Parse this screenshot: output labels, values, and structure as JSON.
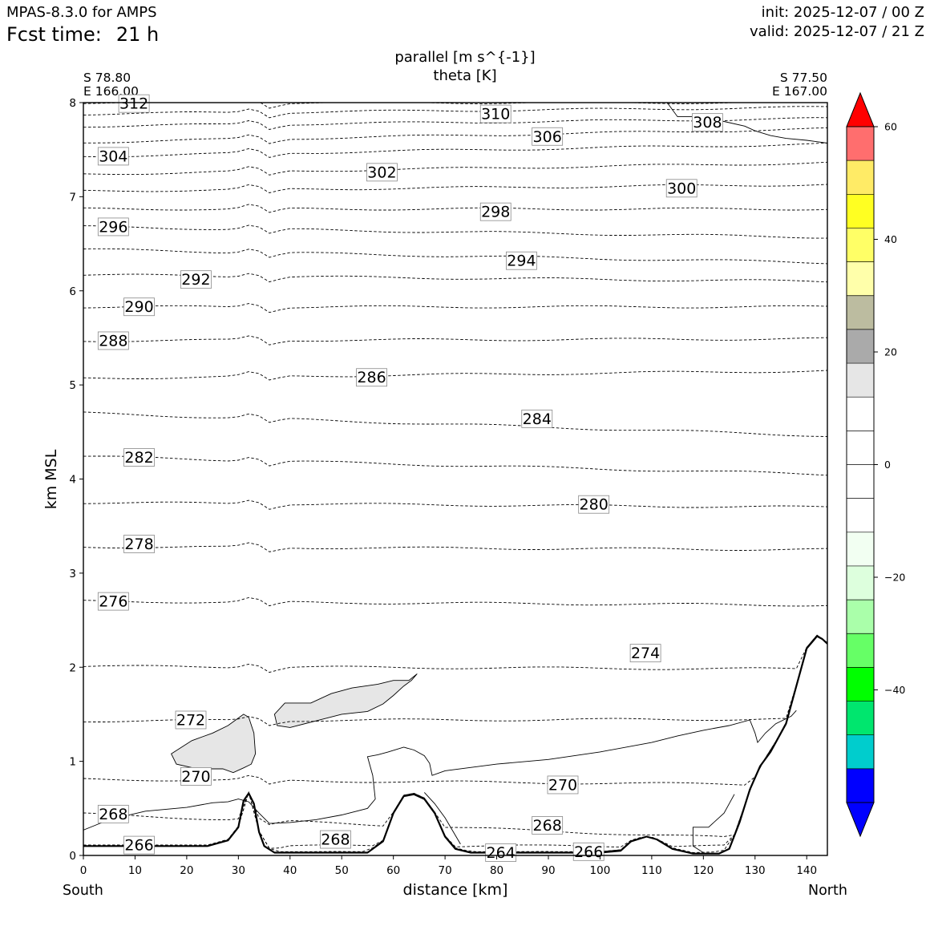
{
  "header": {
    "model": "MPAS-8.3.0 for AMPS",
    "fcst_label": "Fcst time:",
    "fcst_value": "21 h",
    "init": "init: 2025-12-07 / 00 Z",
    "valid": "valid: 2025-12-07 / 21 Z"
  },
  "chart_data": {
    "type": "contour",
    "title": "parallel [m s^{-1}]",
    "subtitle": "theta [K]",
    "xlabel": "distance [km]",
    "ylabel": "km MSL",
    "xlim": [
      0,
      144
    ],
    "ylim": [
      0,
      8
    ],
    "xticks": [
      0,
      10,
      20,
      30,
      40,
      50,
      60,
      70,
      80,
      90,
      100,
      110,
      120,
      130,
      140
    ],
    "yticks": [
      0,
      1,
      2,
      3,
      4,
      5,
      6,
      7,
      8
    ],
    "endpoints": {
      "left": [
        "S 78.80",
        "E 166.00"
      ],
      "right": [
        "S 77.50",
        "E 167.00"
      ]
    },
    "direction_labels": {
      "left": "South",
      "right": "North"
    },
    "theta_contours": [
      {
        "label": "312",
        "z_left": 8.0,
        "z_right": 8.0,
        "label_at": [
          7,
          7.99
        ]
      },
      {
        "label": "310",
        "z_left": 7.88,
        "z_right": 7.95,
        "label_at": [
          77,
          7.88
        ]
      },
      {
        "label": "308",
        "z_left": 7.75,
        "z_right": 7.83,
        "label_at": [
          118,
          7.79
        ]
      },
      {
        "label": "306",
        "z_left": 7.58,
        "z_right": 7.72,
        "label_at": [
          87,
          7.64
        ]
      },
      {
        "label": "304",
        "z_left": 7.43,
        "z_right": 7.56,
        "label_at": [
          3,
          7.43
        ]
      },
      {
        "label": "302",
        "z_left": 7.24,
        "z_right": 7.36,
        "label_at": [
          55,
          7.26
        ]
      },
      {
        "label": "300",
        "z_left": 7.06,
        "z_right": 7.13,
        "label_at": [
          113,
          7.09
        ]
      },
      {
        "label": "298",
        "z_left": 6.87,
        "z_right": 6.87,
        "label_at": [
          77,
          6.84
        ]
      },
      {
        "label": "296",
        "z_left": 6.68,
        "z_right": 6.57,
        "label_at": [
          3,
          6.68
        ]
      },
      {
        "label": "294",
        "z_left": 6.44,
        "z_right": 6.3,
        "label_at": [
          82,
          6.32
        ]
      },
      {
        "label": "292",
        "z_left": 6.17,
        "z_right": 6.1,
        "label_at": [
          19,
          6.12
        ]
      },
      {
        "label": "290",
        "z_left": 5.83,
        "z_right": 5.83,
        "label_at": [
          8,
          5.83
        ]
      },
      {
        "label": "288",
        "z_left": 5.47,
        "z_right": 5.49,
        "label_at": [
          3,
          5.47
        ]
      },
      {
        "label": "286",
        "z_left": 5.07,
        "z_right": 5.15,
        "label_at": [
          53,
          5.08
        ]
      },
      {
        "label": "284",
        "z_left": 4.7,
        "z_right": 4.46,
        "label_at": [
          85,
          4.64
        ]
      },
      {
        "label": "282",
        "z_left": 4.24,
        "z_right": 4.05,
        "label_at": [
          8,
          4.23
        ]
      },
      {
        "label": "280",
        "z_left": 3.75,
        "z_right": 3.7,
        "label_at": [
          96,
          3.73
        ]
      },
      {
        "label": "278",
        "z_left": 3.28,
        "z_right": 3.25,
        "label_at": [
          8,
          3.31
        ]
      },
      {
        "label": "276",
        "z_left": 2.7,
        "z_right": 2.66,
        "label_at": [
          3,
          2.7
        ]
      },
      {
        "label": "274",
        "z_left": 2.01,
        "z_right": 1.98,
        "label_at": [
          106,
          2.15
        ]
      },
      {
        "label": "272",
        "z_left": 1.43,
        "z_right": 1.45,
        "label_at": [
          18,
          1.44
        ]
      },
      {
        "label": "270",
        "z_left": 0.81,
        "z_right": 0.75,
        "label_at": [
          19,
          0.84
        ]
      },
      {
        "label": "268",
        "z_left": 0.44,
        "z_right": 0.15,
        "label_at": [
          3,
          0.44
        ]
      },
      {
        "label": "268",
        "z_left": 0.44,
        "z_right": 0.15,
        "label_at": [
          46,
          0.17
        ]
      },
      {
        "label": "268",
        "z_left": 0.44,
        "z_right": 0.15,
        "label_at": [
          87,
          0.32
        ]
      },
      {
        "label": "270",
        "z_left": 0.81,
        "z_right": 0.75,
        "label_at": [
          90,
          0.75
        ]
      },
      {
        "label": "266",
        "z_left": 0.1,
        "z_right": 0.1,
        "label_at": [
          8,
          0.11
        ]
      },
      {
        "label": "266",
        "z_left": 0.1,
        "z_right": 0.1,
        "label_at": [
          95,
          0.04
        ]
      },
      {
        "label": "264",
        "z_left": 0.03,
        "z_right": 0.03,
        "label_at": [
          78,
          0.03
        ]
      }
    ],
    "colorbar": {
      "ticks": [
        60,
        40,
        20,
        0,
        -20,
        -40
      ],
      "tick_labels": [
        "60",
        "40",
        "20",
        "0",
        "−20",
        "−40"
      ],
      "min": -60,
      "max": 60,
      "colors": [
        {
          "from": -60,
          "to": -54,
          "color": "#0000ff"
        },
        {
          "from": -54,
          "to": -48,
          "color": "#00cdcd"
        },
        {
          "from": -48,
          "to": -42,
          "color": "#00e66e"
        },
        {
          "from": -42,
          "to": -36,
          "color": "#00ff00"
        },
        {
          "from": -36,
          "to": -30,
          "color": "#66ff66"
        },
        {
          "from": -30,
          "to": -24,
          "color": "#aaffaa"
        },
        {
          "from": -24,
          "to": -18,
          "color": "#ddffdd"
        },
        {
          "from": -18,
          "to": -12,
          "color": "#f2fff2"
        },
        {
          "from": -12,
          "to": -6,
          "color": "#ffffff"
        },
        {
          "from": -6,
          "to": 0,
          "color": "#ffffff"
        },
        {
          "from": 0,
          "to": 6,
          "color": "#ffffff"
        },
        {
          "from": 6,
          "to": 12,
          "color": "#ffffff"
        },
        {
          "from": 12,
          "to": 18,
          "color": "#e6e6e6"
        },
        {
          "from": 18,
          "to": 24,
          "color": "#aaaaaa"
        },
        {
          "from": 24,
          "to": 30,
          "color": "#bcbca0"
        },
        {
          "from": 30,
          "to": 36,
          "color": "#ffffaa"
        },
        {
          "from": 36,
          "to": 42,
          "color": "#ffff66"
        },
        {
          "from": 42,
          "to": 48,
          "color": "#ffff22"
        },
        {
          "from": 48,
          "to": 54,
          "color": "#ffeb66"
        },
        {
          "from": 54,
          "to": 60,
          "color": "#ff6e6e"
        },
        {
          "from": 60,
          "to": 66,
          "color": "#ff0000"
        }
      ],
      "extend_max_color": "#ff0000",
      "extend_min_color": "#0000ff"
    },
    "terrain": [
      [
        0,
        0.1
      ],
      [
        24,
        0.1
      ],
      [
        28,
        0.16
      ],
      [
        30,
        0.3
      ],
      [
        31,
        0.58
      ],
      [
        32,
        0.66
      ],
      [
        33,
        0.55
      ],
      [
        34,
        0.25
      ],
      [
        35,
        0.1
      ],
      [
        37,
        0.03
      ],
      [
        40,
        0.03
      ],
      [
        55,
        0.03
      ],
      [
        58,
        0.15
      ],
      [
        60,
        0.45
      ],
      [
        62,
        0.63
      ],
      [
        64,
        0.65
      ],
      [
        66,
        0.6
      ],
      [
        68,
        0.45
      ],
      [
        70,
        0.2
      ],
      [
        72,
        0.07
      ],
      [
        75,
        0.03
      ],
      [
        100,
        0.03
      ],
      [
        104,
        0.05
      ],
      [
        106,
        0.15
      ],
      [
        109,
        0.2
      ],
      [
        111,
        0.17
      ],
      [
        114,
        0.07
      ],
      [
        118,
        0.02
      ],
      [
        123,
        0.02
      ],
      [
        125,
        0.07
      ],
      [
        127,
        0.35
      ],
      [
        129,
        0.7
      ],
      [
        131,
        0.95
      ],
      [
        133,
        1.1
      ],
      [
        136,
        1.4
      ],
      [
        138,
        1.8
      ],
      [
        140,
        2.2
      ],
      [
        142,
        2.33
      ],
      [
        143,
        2.3
      ],
      [
        144,
        2.25
      ]
    ],
    "shaded_regions": [
      {
        "value_band": "12 to 18",
        "color": "#e6e6e6",
        "outline": [
          [
            17,
            1.08
          ],
          [
            21,
            1.22
          ],
          [
            25,
            1.3
          ],
          [
            28,
            1.38
          ],
          [
            30,
            1.46
          ],
          [
            31,
            1.5
          ],
          [
            32,
            1.47
          ],
          [
            33,
            1.3
          ],
          [
            33.3,
            1.08
          ],
          [
            32.5,
            0.97
          ],
          [
            31,
            0.93
          ],
          [
            29,
            0.88
          ],
          [
            27,
            0.92
          ],
          [
            22,
            0.92
          ],
          [
            18,
            0.97
          ],
          [
            17,
            1.08
          ]
        ]
      },
      {
        "value_band": "12 to 18",
        "color": "#e6e6e6",
        "outline": [
          [
            37,
            1.5
          ],
          [
            39,
            1.62
          ],
          [
            44,
            1.62
          ],
          [
            48,
            1.72
          ],
          [
            52,
            1.78
          ],
          [
            57,
            1.82
          ],
          [
            60,
            1.86
          ],
          [
            63,
            1.86
          ],
          [
            64.6,
            1.93
          ],
          [
            63.5,
            1.86
          ],
          [
            62,
            1.8
          ],
          [
            60,
            1.7
          ],
          [
            58,
            1.61
          ],
          [
            55,
            1.53
          ],
          [
            50,
            1.5
          ],
          [
            45,
            1.43
          ],
          [
            40,
            1.36
          ],
          [
            37.5,
            1.38
          ],
          [
            37,
            1.5
          ]
        ]
      }
    ],
    "velocity_zero_contours": [
      [
        [
          0,
          0.27
        ],
        [
          5,
          0.38
        ],
        [
          12,
          0.47
        ],
        [
          20,
          0.51
        ],
        [
          25,
          0.56
        ],
        [
          28,
          0.57
        ],
        [
          30,
          0.6
        ],
        [
          32,
          0.57
        ],
        [
          34,
          0.45
        ],
        [
          36,
          0.34
        ],
        [
          40,
          0.35
        ],
        [
          45,
          0.38
        ],
        [
          50,
          0.43
        ],
        [
          55,
          0.5
        ],
        [
          56.5,
          0.6
        ],
        [
          56,
          0.85
        ],
        [
          55,
          1.05
        ],
        [
          57,
          1.07
        ],
        [
          59,
          1.1
        ],
        [
          62,
          1.15
        ],
        [
          64,
          1.12
        ],
        [
          66,
          1.06
        ],
        [
          67,
          0.98
        ],
        [
          67.5,
          0.85
        ],
        [
          70,
          0.9
        ],
        [
          80,
          0.97
        ],
        [
          90,
          1.02
        ],
        [
          100,
          1.1
        ],
        [
          110,
          1.2
        ],
        [
          115,
          1.27
        ],
        [
          120,
          1.33
        ],
        [
          125,
          1.38
        ],
        [
          129,
          1.44
        ],
        [
          130,
          1.3
        ],
        [
          130.5,
          1.2
        ],
        [
          132,
          1.3
        ],
        [
          134,
          1.4
        ],
        [
          137,
          1.48
        ],
        [
          138,
          1.54
        ]
      ],
      [
        [
          66,
          0.67
        ],
        [
          68,
          0.55
        ],
        [
          70,
          0.4
        ],
        [
          73,
          0.12
        ]
      ],
      [
        [
          126,
          0.65
        ],
        [
          124,
          0.45
        ],
        [
          121,
          0.3
        ],
        [
          118,
          0.3
        ],
        [
          118,
          0.1
        ],
        [
          120,
          0.03
        ]
      ],
      [
        [
          82,
          0.03
        ],
        [
          90,
          0.03
        ],
        [
          100,
          0.04
        ],
        [
          104,
          0.06
        ]
      ],
      [
        [
          113,
          8
        ],
        [
          115,
          7.85
        ],
        [
          118,
          7.85
        ],
        [
          124,
          7.8
        ],
        [
          128,
          7.75
        ],
        [
          130,
          7.7
        ],
        [
          133,
          7.65
        ],
        [
          136,
          7.62
        ],
        [
          140,
          7.6
        ],
        [
          144,
          7.57
        ]
      ]
    ]
  }
}
